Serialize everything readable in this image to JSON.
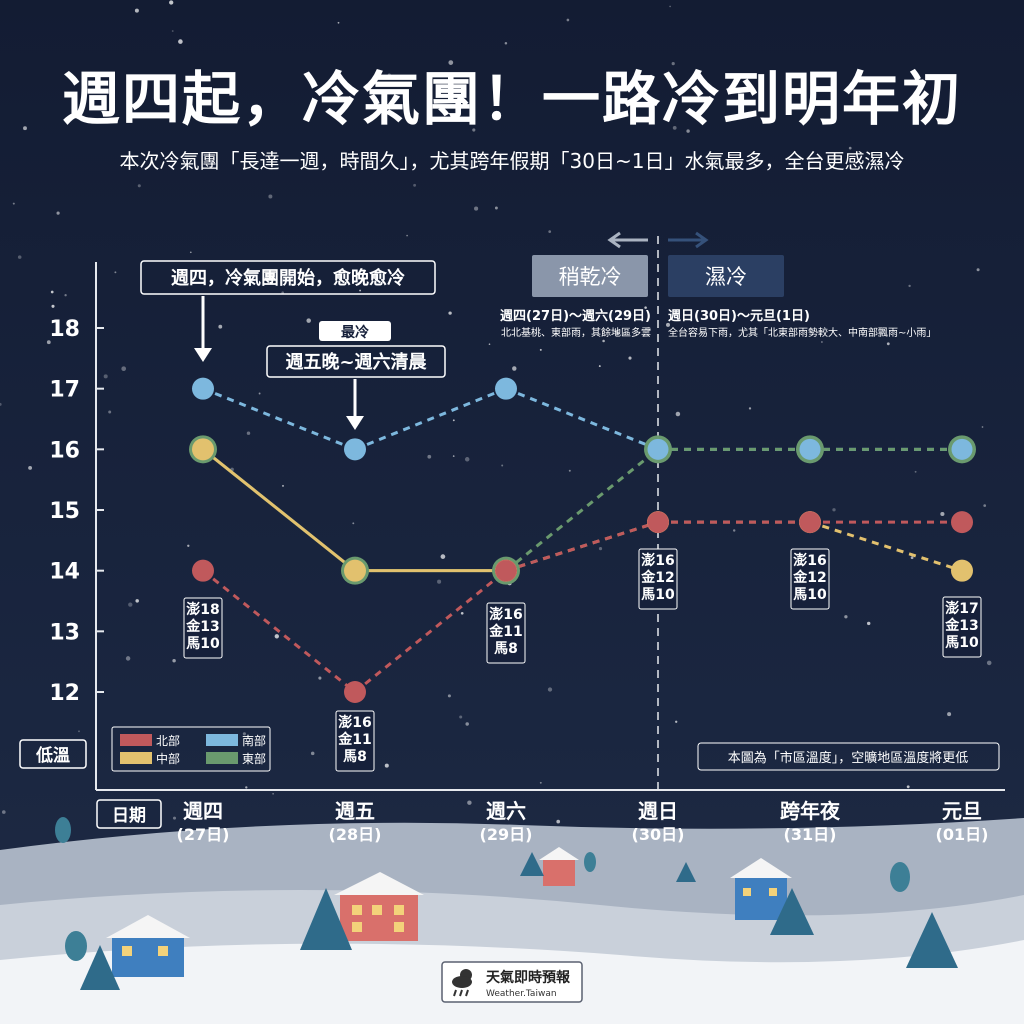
{
  "header": {
    "title": "週四起，冷氣團！一路冷到明年初",
    "subtitle": "本次冷氣團「長達一週，時間久」，尤其跨年假期「30日~1日」水氣最多，全台更感濕冷"
  },
  "chart_data": {
    "type": "line",
    "ylabel": "低溫",
    "xlabel": "日期",
    "ylim": [
      11.5,
      18.5
    ],
    "yticks": [
      12,
      13,
      14,
      15,
      16,
      17,
      18
    ],
    "categories": [
      {
        "day": "週四",
        "date": "(27日)"
      },
      {
        "day": "週五",
        "date": "(28日)"
      },
      {
        "day": "週六",
        "date": "(29日)"
      },
      {
        "day": "週日",
        "date": "(30日)"
      },
      {
        "day": "跨年夜",
        "date": "(31日)"
      },
      {
        "day": "元旦",
        "date": "(01日)"
      }
    ],
    "series": [
      {
        "name": "北部",
        "color": "#c0595c",
        "values": [
          14,
          12,
          14,
          14.8,
          14.8,
          14.8
        ]
      },
      {
        "name": "中部",
        "color": "#e2c16e",
        "values": [
          16,
          14,
          14,
          14.8,
          14.8,
          14
        ]
      },
      {
        "name": "南部",
        "color": "#7db8de",
        "values": [
          17,
          16,
          17,
          16,
          16,
          16
        ]
      },
      {
        "name": "東部",
        "color": "#6a9a6e",
        "values": [
          16,
          14,
          14,
          16,
          16,
          16
        ]
      }
    ],
    "legend_position": "bottom-left",
    "islands": [
      {
        "x_index": 0,
        "lines": [
          "澎18",
          "金13",
          "馬10"
        ]
      },
      {
        "x_index": 1,
        "lines": [
          "澎16",
          "金11",
          "馬8"
        ]
      },
      {
        "x_index": 2,
        "lines": [
          "澎16",
          "金11",
          "馬8"
        ]
      },
      {
        "x_index": 3,
        "lines": [
          "澎16",
          "金12",
          "馬10"
        ]
      },
      {
        "x_index": 4,
        "lines": [
          "澎16",
          "金12",
          "馬10"
        ]
      },
      {
        "x_index": 5,
        "lines": [
          "澎17",
          "金13",
          "馬10"
        ]
      }
    ],
    "annotations": {
      "callout1": "週四，冷氣團開始，愈晚愈冷",
      "coldest_tag": "最冷",
      "callout2": "週五晚~週六清晨",
      "dry_label": "稍乾冷",
      "wet_label": "濕冷",
      "period1_title": "週四(27日)～週六(29日)",
      "period1_desc": "北北基桃、東部雨，其餘地區多雲",
      "period2_title": "週日(30日)～元旦(1日)",
      "period2_desc": "全台容易下雨，尤其「北東部雨勢較大、中南部飄雨~小雨」",
      "note": "本圖為「市區溫度」，空曠地區溫度將更低"
    }
  },
  "footer": {
    "brand": "天氣即時預報",
    "brand_sub": "Weather.Taiwan",
    "logo_icon": "cloud-rain-sun-icon"
  }
}
